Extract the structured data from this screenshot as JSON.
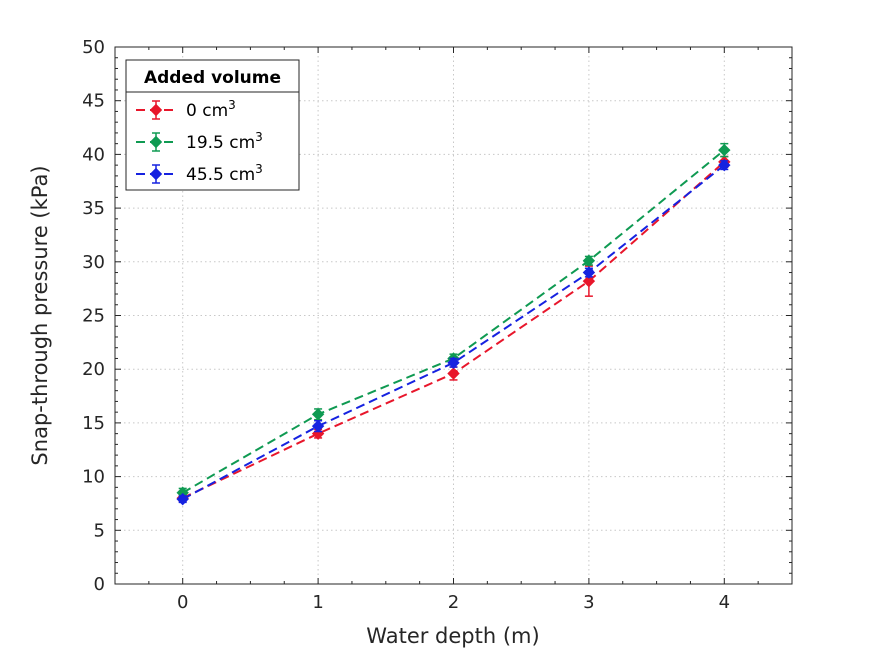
{
  "chart_data": {
    "type": "line",
    "title": "",
    "xlabel": "Water depth (m)",
    "ylabel": "Snap-through pressure (kPa)",
    "xlim": [
      -0.5,
      4.5
    ],
    "ylim": [
      0,
      50
    ],
    "xticks": [
      0,
      1,
      2,
      3,
      4
    ],
    "yticks": [
      0,
      5,
      10,
      15,
      20,
      25,
      30,
      35,
      40,
      45,
      50
    ],
    "grid": true,
    "legend": {
      "title": "Added volume",
      "position": "top-left"
    },
    "series": [
      {
        "name": "0 cm",
        "superscript": "3",
        "color": "#e8162b",
        "x": [
          0,
          1,
          2,
          3,
          4
        ],
        "y": [
          8.0,
          14.0,
          19.6,
          28.2,
          39.3
        ],
        "error": [
          0.3,
          0.4,
          0.6,
          1.4,
          0.5
        ]
      },
      {
        "name": "19.5 cm",
        "superscript": "3",
        "color": "#0f9a52",
        "x": [
          0,
          1,
          2,
          3,
          4
        ],
        "y": [
          8.5,
          15.8,
          21.0,
          30.1,
          40.4
        ],
        "error": [
          0.4,
          0.5,
          0.4,
          0.4,
          0.6
        ]
      },
      {
        "name": "45.5 cm",
        "superscript": "3",
        "color": "#1622e0",
        "x": [
          0,
          1,
          2,
          3,
          4
        ],
        "y": [
          7.9,
          14.7,
          20.6,
          29.0,
          39.0
        ],
        "error": [
          0.3,
          0.5,
          0.4,
          0.4,
          0.4
        ]
      }
    ]
  }
}
